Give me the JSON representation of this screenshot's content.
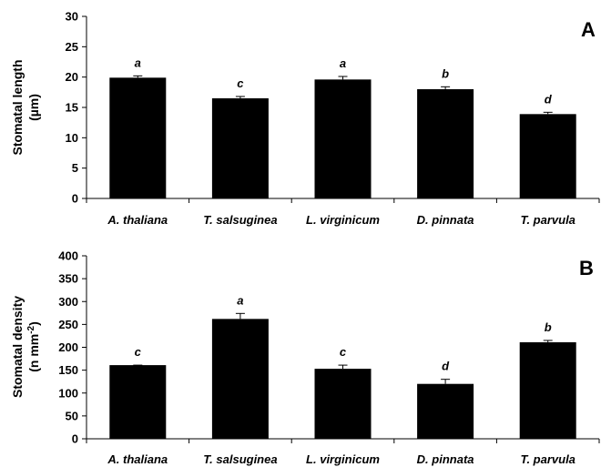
{
  "chart_data": [
    {
      "type": "bar",
      "panel_label": "A",
      "ylabel_line1": "Stomatal length",
      "ylabel_line2": "(µm)",
      "ylim": [
        0,
        30
      ],
      "yticks": [
        0,
        5,
        10,
        15,
        20,
        25,
        30
      ],
      "categories": [
        "A. thaliana",
        "T. salsuginea",
        "L. virginicum",
        "D. pinnata",
        "T. parvula"
      ],
      "values": [
        19.9,
        16.5,
        19.6,
        18.0,
        13.9
      ],
      "errors": [
        0.3,
        0.3,
        0.5,
        0.4,
        0.3
      ],
      "significance": [
        "a",
        "c",
        "a",
        "b",
        "d"
      ],
      "bar_color": "#000000",
      "grid": false
    },
    {
      "type": "bar",
      "panel_label": "B",
      "ylabel_line1": "Stomatal density",
      "ylabel_line2": "(n mm",
      "ylabel_sup": "-2",
      "ylabel_close": ")",
      "ylim": [
        0,
        400
      ],
      "yticks": [
        0,
        50,
        100,
        150,
        200,
        250,
        300,
        350,
        400
      ],
      "categories": [
        "A. thaliana",
        "T. salsuginea",
        "L. virginicum",
        "D. pinnata",
        "T. parvula"
      ],
      "values": [
        161,
        262,
        153,
        120,
        211
      ],
      "errors": [
        0,
        12,
        8,
        10,
        4
      ],
      "significance": [
        "c",
        "a",
        "c",
        "d",
        "b"
      ],
      "bar_color": "#000000",
      "grid": false
    }
  ]
}
